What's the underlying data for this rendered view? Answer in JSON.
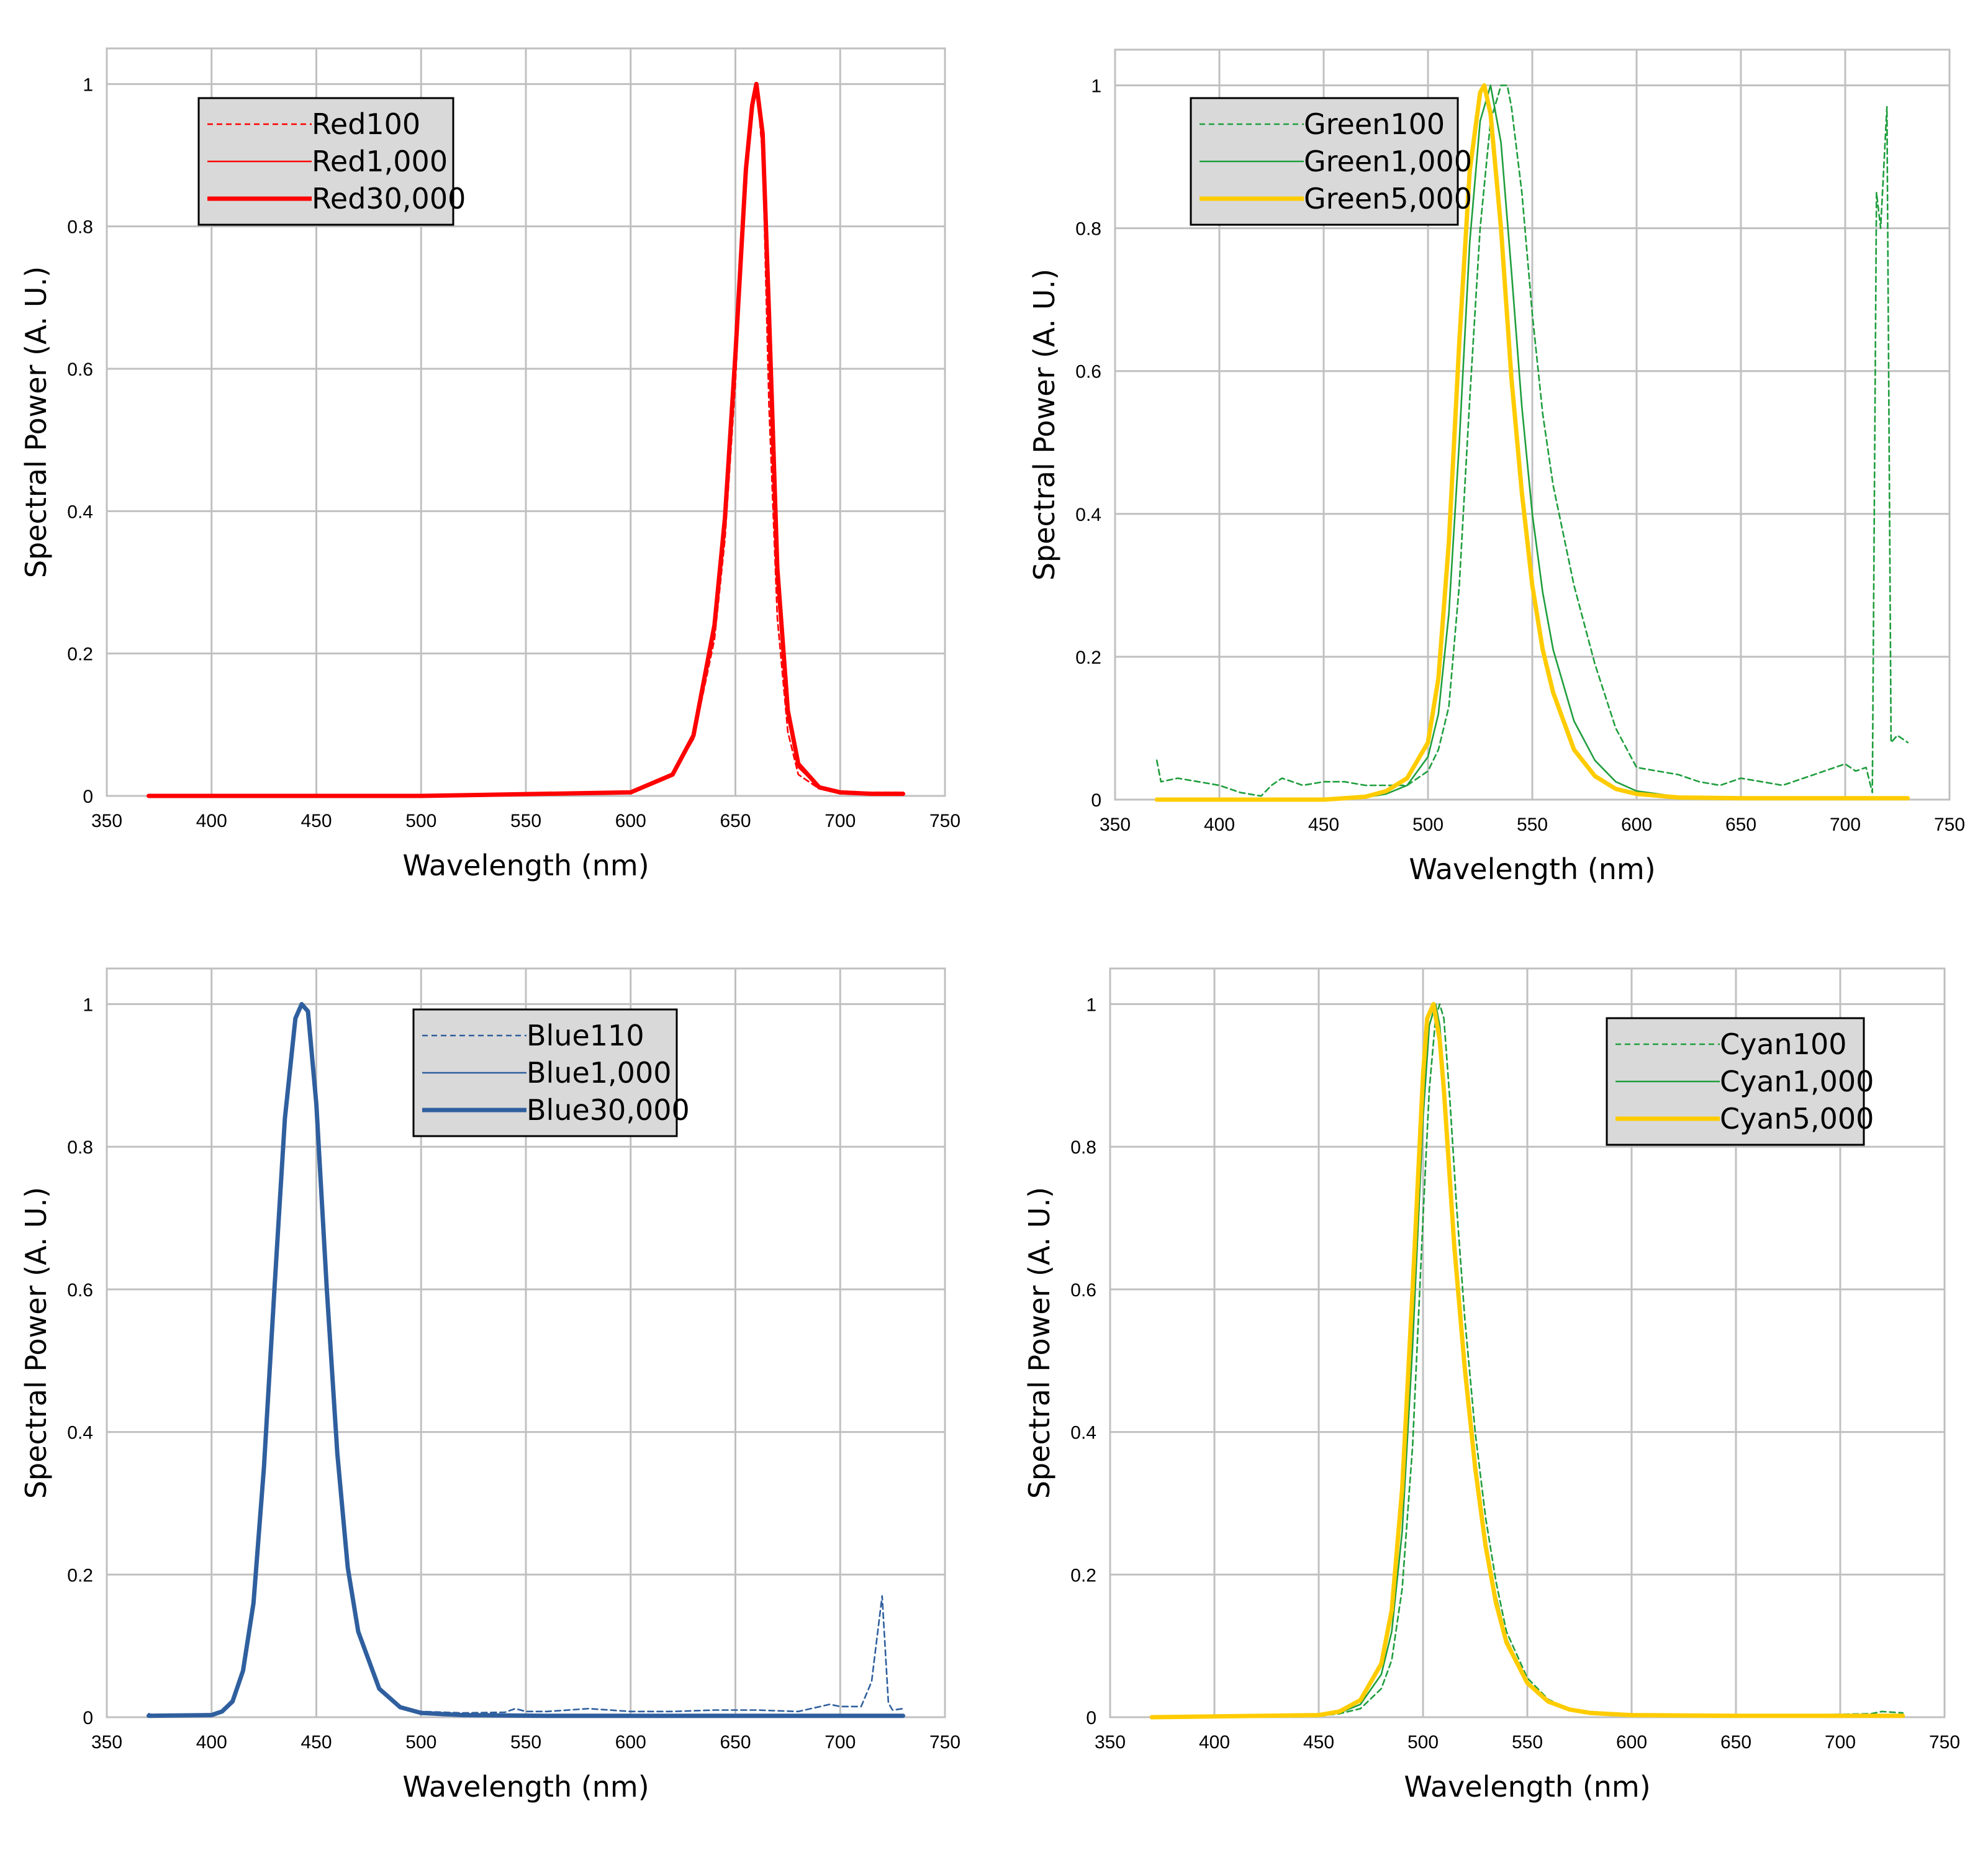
{
  "chart_data": [
    {
      "type": "line",
      "id": "red",
      "xlabel": "Wavelength (nm)",
      "ylabel": "Spectral Power (A. U.)",
      "xlim": [
        350,
        750
      ],
      "ylim": [
        0,
        1.05
      ],
      "xticks": [
        350,
        400,
        450,
        500,
        550,
        600,
        650,
        700,
        750
      ],
      "yticks": [
        0,
        0.2,
        0.4,
        0.6,
        0.8,
        1
      ],
      "ytick_labels": [
        "0",
        "0.2",
        "0.4",
        "0.6",
        "0.8",
        "1"
      ],
      "grid": true,
      "legend_position": "top-left",
      "series": [
        {
          "name": "Red100",
          "style": "dashed",
          "color": "#ff0000",
          "width": "thin",
          "x": [
            370,
            500,
            600,
            620,
            630,
            640,
            645,
            650,
            655,
            658,
            660,
            663,
            666,
            670,
            675,
            680,
            690,
            700,
            715,
            730
          ],
          "y": [
            0,
            0,
            0.005,
            0.03,
            0.08,
            0.22,
            0.36,
            0.58,
            0.88,
            0.98,
            1.0,
            0.9,
            0.55,
            0.25,
            0.09,
            0.03,
            0.01,
            0.005,
            0.005,
            0.005
          ]
        },
        {
          "name": "Red1,000",
          "style": "solid",
          "color": "#ff0000",
          "width": "thin",
          "x": [
            370,
            500,
            600,
            620,
            630,
            640,
            645,
            650,
            655,
            658,
            660,
            663,
            666,
            670,
            675,
            680,
            690,
            700,
            715,
            730
          ],
          "y": [
            0,
            0,
            0.005,
            0.03,
            0.08,
            0.23,
            0.38,
            0.6,
            0.88,
            0.97,
            1.0,
            0.92,
            0.65,
            0.3,
            0.11,
            0.04,
            0.012,
            0.005,
            0.003,
            0.003
          ]
        },
        {
          "name": "Red30,000",
          "style": "solid",
          "color": "#ff0000",
          "width": "thick",
          "x": [
            370,
            500,
            600,
            620,
            630,
            640,
            645,
            650,
            655,
            658,
            660,
            663,
            666,
            670,
            675,
            680,
            690,
            700,
            715,
            730
          ],
          "y": [
            0,
            0,
            0.005,
            0.03,
            0.085,
            0.24,
            0.39,
            0.62,
            0.88,
            0.97,
            1.0,
            0.93,
            0.68,
            0.32,
            0.12,
            0.045,
            0.012,
            0.005,
            0.003,
            0.003
          ]
        }
      ]
    },
    {
      "type": "line",
      "id": "green",
      "xlabel": "Wavelength (nm)",
      "ylabel": "Spectral Power (A. U.)",
      "xlim": [
        350,
        750
      ],
      "ylim": [
        0,
        1.05
      ],
      "xticks": [
        350,
        400,
        450,
        500,
        550,
        600,
        650,
        700,
        750
      ],
      "yticks": [
        0,
        0.2,
        0.4,
        0.6,
        0.8,
        1
      ],
      "ytick_labels": [
        "0",
        "0.2",
        "0.4",
        "0.6",
        "0.8",
        "1"
      ],
      "grid": true,
      "legend_position": "top-left",
      "series": [
        {
          "name": "Green100",
          "style": "dashed",
          "color": "#1e9e3c",
          "width": "thin",
          "x": [
            370,
            372,
            380,
            390,
            400,
            410,
            420,
            425,
            430,
            435,
            440,
            450,
            460,
            470,
            480,
            490,
            500,
            505,
            510,
            515,
            520,
            525,
            530,
            535,
            538,
            540,
            545,
            550,
            555,
            560,
            570,
            580,
            590,
            600,
            610,
            620,
            630,
            640,
            650,
            660,
            670,
            680,
            690,
            700,
            705,
            710,
            713,
            715,
            717,
            720,
            722,
            725,
            730
          ],
          "y": [
            0.055,
            0.025,
            0.03,
            0.025,
            0.02,
            0.01,
            0.005,
            0.02,
            0.03,
            0.025,
            0.02,
            0.025,
            0.025,
            0.02,
            0.02,
            0.02,
            0.04,
            0.07,
            0.13,
            0.3,
            0.56,
            0.8,
            0.95,
            1.0,
            1.0,
            0.97,
            0.85,
            0.68,
            0.54,
            0.44,
            0.3,
            0.19,
            0.1,
            0.045,
            0.04,
            0.035,
            0.025,
            0.02,
            0.03,
            0.025,
            0.02,
            0.03,
            0.04,
            0.05,
            0.04,
            0.045,
            0.01,
            0.85,
            0.8,
            0.97,
            0.08,
            0.09,
            0.08
          ]
        },
        {
          "name": "Green1,000",
          "style": "solid",
          "color": "#1e9e3c",
          "width": "thin",
          "x": [
            370,
            450,
            470,
            480,
            490,
            500,
            505,
            510,
            515,
            520,
            525,
            530,
            535,
            540,
            545,
            550,
            555,
            560,
            570,
            580,
            590,
            600,
            620,
            650,
            700,
            730
          ],
          "y": [
            0,
            0,
            0.003,
            0.008,
            0.02,
            0.06,
            0.12,
            0.26,
            0.5,
            0.78,
            0.95,
            1.0,
            0.92,
            0.74,
            0.55,
            0.4,
            0.29,
            0.21,
            0.11,
            0.055,
            0.025,
            0.012,
            0.004,
            0.002,
            0.002,
            0.002
          ]
        },
        {
          "name": "Green5,000",
          "style": "solid",
          "color": "#ffcc00",
          "width": "thick",
          "x": [
            370,
            450,
            470,
            480,
            490,
            500,
            505,
            510,
            515,
            520,
            525,
            527,
            530,
            535,
            540,
            545,
            550,
            555,
            560,
            570,
            580,
            590,
            600,
            620,
            650,
            700,
            730
          ],
          "y": [
            0,
            0,
            0.004,
            0.012,
            0.03,
            0.08,
            0.17,
            0.36,
            0.64,
            0.88,
            0.99,
            1.0,
            0.96,
            0.8,
            0.59,
            0.43,
            0.3,
            0.21,
            0.15,
            0.07,
            0.033,
            0.015,
            0.008,
            0.003,
            0.002,
            0.002,
            0.002
          ]
        }
      ]
    },
    {
      "type": "line",
      "id": "blue",
      "xlabel": "Wavelength (nm)",
      "ylabel": "Spectral Power (A. U.)",
      "xlim": [
        350,
        750
      ],
      "ylim": [
        0,
        1.05
      ],
      "xticks": [
        350,
        400,
        450,
        500,
        550,
        600,
        650,
        700,
        750
      ],
      "yticks": [
        0,
        0.2,
        0.4,
        0.6,
        0.8,
        1
      ],
      "ytick_labels": [
        "0",
        "0.2",
        "0.4",
        "0.6",
        "0.8",
        "1"
      ],
      "grid": true,
      "legend_position": "top-center",
      "series": [
        {
          "name": "Blue110",
          "style": "dashed",
          "color": "#2f5f9e",
          "width": "thin",
          "x": [
            370,
            372,
            380,
            390,
            400,
            405,
            410,
            415,
            420,
            425,
            430,
            435,
            440,
            443,
            446,
            450,
            455,
            460,
            465,
            470,
            480,
            490,
            500,
            520,
            540,
            545,
            550,
            560,
            580,
            600,
            620,
            640,
            660,
            680,
            695,
            700,
            710,
            715,
            720,
            723,
            725,
            730
          ],
          "y": [
            0.005,
            0.003,
            0.004,
            0.004,
            0.005,
            0.01,
            0.025,
            0.07,
            0.17,
            0.36,
            0.6,
            0.84,
            0.98,
            1.0,
            0.99,
            0.86,
            0.6,
            0.37,
            0.21,
            0.12,
            0.04,
            0.014,
            0.008,
            0.006,
            0.007,
            0.012,
            0.008,
            0.008,
            0.012,
            0.008,
            0.008,
            0.01,
            0.01,
            0.008,
            0.018,
            0.015,
            0.015,
            0.05,
            0.17,
            0.02,
            0.01,
            0.012
          ]
        },
        {
          "name": "Blue1,000",
          "style": "solid",
          "color": "#2f5f9e",
          "width": "thin",
          "x": [
            370,
            400,
            405,
            410,
            415,
            420,
            425,
            430,
            435,
            440,
            443,
            446,
            450,
            455,
            460,
            465,
            470,
            480,
            490,
            500,
            520,
            560,
            600,
            650,
            700,
            730
          ],
          "y": [
            0.002,
            0.003,
            0.008,
            0.022,
            0.065,
            0.16,
            0.35,
            0.6,
            0.84,
            0.98,
            1.0,
            0.99,
            0.86,
            0.6,
            0.37,
            0.21,
            0.12,
            0.04,
            0.014,
            0.006,
            0.003,
            0.002,
            0.002,
            0.002,
            0.002,
            0.002
          ]
        },
        {
          "name": "Blue30,000",
          "style": "solid",
          "color": "#2f5f9e",
          "width": "thick",
          "x": [
            370,
            400,
            405,
            410,
            415,
            420,
            425,
            430,
            435,
            440,
            443,
            446,
            450,
            455,
            460,
            465,
            470,
            480,
            490,
            500,
            520,
            560,
            600,
            650,
            700,
            730
          ],
          "y": [
            0.002,
            0.003,
            0.008,
            0.022,
            0.065,
            0.16,
            0.35,
            0.6,
            0.84,
            0.98,
            1.0,
            0.99,
            0.86,
            0.6,
            0.37,
            0.21,
            0.12,
            0.04,
            0.014,
            0.006,
            0.003,
            0.002,
            0.002,
            0.002,
            0.002,
            0.002
          ]
        }
      ]
    },
    {
      "type": "line",
      "id": "cyan",
      "xlabel": "Wavelength (nm)",
      "ylabel": "Spectral Power (A. U.)",
      "xlim": [
        350,
        750
      ],
      "ylim": [
        0,
        1.05
      ],
      "xticks": [
        350,
        400,
        450,
        500,
        550,
        600,
        650,
        700,
        750
      ],
      "yticks": [
        0,
        0.2,
        0.4,
        0.6,
        0.8,
        1
      ],
      "ytick_labels": [
        "0",
        "0.2",
        "0.4",
        "0.6",
        "0.8",
        "1"
      ],
      "grid": true,
      "legend_position": "top-right",
      "series": [
        {
          "name": "Cyan100",
          "style": "dashed",
          "color": "#1e9e3c",
          "width": "thin",
          "x": [
            370,
            450,
            460,
            470,
            480,
            485,
            490,
            495,
            500,
            503,
            506,
            508,
            510,
            513,
            516,
            520,
            525,
            530,
            535,
            540,
            550,
            560,
            570,
            580,
            600,
            650,
            700,
            715,
            720,
            730
          ],
          "y": [
            0,
            0.002,
            0.005,
            0.012,
            0.04,
            0.08,
            0.18,
            0.38,
            0.7,
            0.88,
            0.98,
            1.0,
            0.98,
            0.86,
            0.72,
            0.56,
            0.4,
            0.28,
            0.19,
            0.12,
            0.055,
            0.025,
            0.012,
            0.008,
            0.004,
            0.002,
            0.004,
            0.005,
            0.008,
            0.006
          ]
        },
        {
          "name": "Cyan1,000",
          "style": "solid",
          "color": "#1e9e3c",
          "width": "thin",
          "x": [
            370,
            450,
            460,
            470,
            480,
            485,
            490,
            495,
            500,
            503,
            506,
            508,
            510,
            515,
            520,
            525,
            530,
            535,
            540,
            550,
            560,
            570,
            580,
            600,
            650,
            700,
            730
          ],
          "y": [
            0,
            0.002,
            0.006,
            0.018,
            0.06,
            0.12,
            0.26,
            0.52,
            0.84,
            0.97,
            1.0,
            0.97,
            0.9,
            0.68,
            0.5,
            0.36,
            0.25,
            0.17,
            0.11,
            0.05,
            0.022,
            0.011,
            0.006,
            0.003,
            0.002,
            0.002,
            0.003
          ]
        },
        {
          "name": "Cyan5,000",
          "style": "solid",
          "color": "#ffcc00",
          "width": "thick",
          "x": [
            370,
            450,
            460,
            470,
            480,
            485,
            490,
            495,
            500,
            502,
            505,
            508,
            510,
            515,
            520,
            525,
            530,
            535,
            540,
            550,
            560,
            570,
            580,
            600,
            650,
            700,
            730
          ],
          "y": [
            0,
            0.003,
            0.008,
            0.024,
            0.075,
            0.15,
            0.32,
            0.6,
            0.9,
            0.98,
            1.0,
            0.95,
            0.88,
            0.66,
            0.49,
            0.35,
            0.24,
            0.16,
            0.105,
            0.048,
            0.022,
            0.011,
            0.006,
            0.003,
            0.002,
            0.002,
            0.002
          ]
        }
      ]
    }
  ]
}
